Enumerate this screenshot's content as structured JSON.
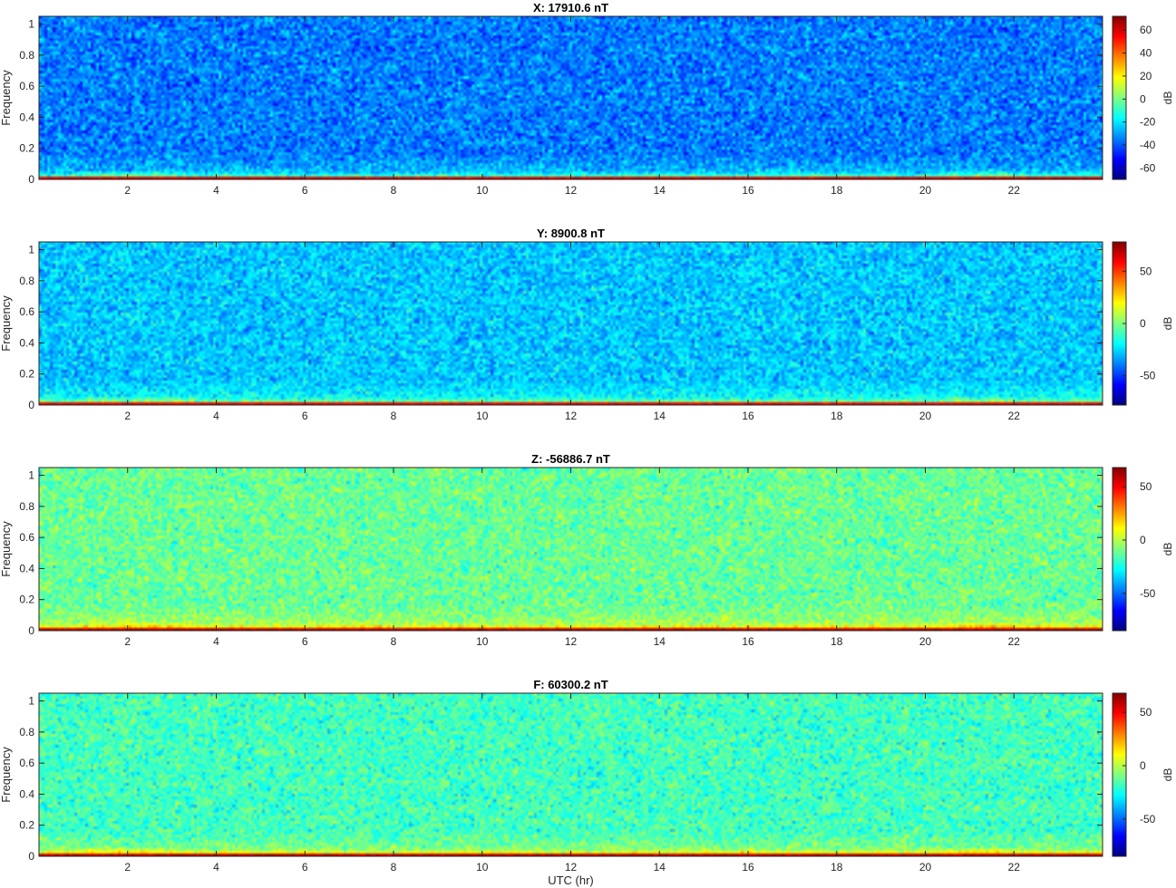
{
  "figure": {
    "xlabel": "UTC (hr)"
  },
  "chart_data": [
    {
      "type": "heatmap",
      "title": "X: 17910.6 nT",
      "ylabel": "Frequency",
      "xlabel": "",
      "colorbar_label": "dB",
      "colormap": "jet",
      "xlim": [
        0,
        24
      ],
      "ylim": [
        0,
        1.05
      ],
      "xticks": [
        2,
        4,
        6,
        8,
        10,
        12,
        14,
        16,
        18,
        20,
        22
      ],
      "yticks": [
        0,
        0.2,
        0.4,
        0.6,
        0.8,
        1
      ],
      "clim": [
        -70,
        72
      ],
      "cticks": [
        -60,
        -40,
        -20,
        0,
        20,
        40,
        60
      ],
      "background_db": -35,
      "band_db": 10,
      "dc_db": 60,
      "low_frequency_band": [
        0,
        0.06
      ]
    },
    {
      "type": "heatmap",
      "title": "Y: 8900.8 nT",
      "ylabel": "Frequency",
      "xlabel": "",
      "colorbar_label": "dB",
      "colormap": "jet",
      "xlim": [
        0,
        24
      ],
      "ylim": [
        0,
        1.05
      ],
      "xticks": [
        2,
        4,
        6,
        8,
        10,
        12,
        14,
        16,
        18,
        20,
        22
      ],
      "yticks": [
        0,
        0.2,
        0.4,
        0.6,
        0.8,
        1
      ],
      "clim": [
        -78,
        78
      ],
      "cticks": [
        -50,
        0,
        50
      ],
      "background_db": -28,
      "band_db": 15,
      "dc_db": 62,
      "low_frequency_band": [
        0,
        0.06
      ]
    },
    {
      "type": "heatmap",
      "title": "Z: -56886.7 nT",
      "ylabel": "Frequency",
      "xlabel": "",
      "colorbar_label": "dB",
      "colormap": "jet",
      "xlim": [
        0,
        24
      ],
      "ylim": [
        0,
        1.05
      ],
      "xticks": [
        2,
        4,
        6,
        8,
        10,
        12,
        14,
        16,
        18,
        20,
        22
      ],
      "yticks": [
        0,
        0.2,
        0.4,
        0.6,
        0.8,
        1
      ],
      "clim": [
        -85,
        68
      ],
      "cticks": [
        -50,
        0,
        50
      ],
      "background_db": -12,
      "band_db": 28,
      "dc_db": 58,
      "low_frequency_band": [
        0,
        0.06
      ]
    },
    {
      "type": "heatmap",
      "title": "F: 60300.2 nT",
      "ylabel": "Frequency",
      "xlabel": "UTC (hr)",
      "colorbar_label": "dB",
      "colormap": "jet",
      "xlim": [
        0,
        24
      ],
      "ylim": [
        0,
        1.05
      ],
      "xticks": [
        2,
        4,
        6,
        8,
        10,
        12,
        14,
        16,
        18,
        20,
        22
      ],
      "yticks": [
        0,
        0.2,
        0.4,
        0.6,
        0.8,
        1
      ],
      "clim": [
        -85,
        68
      ],
      "cticks": [
        -50,
        0,
        50
      ],
      "background_db": -18,
      "band_db": 25,
      "dc_db": 58,
      "low_frequency_band": [
        0,
        0.06
      ]
    }
  ]
}
